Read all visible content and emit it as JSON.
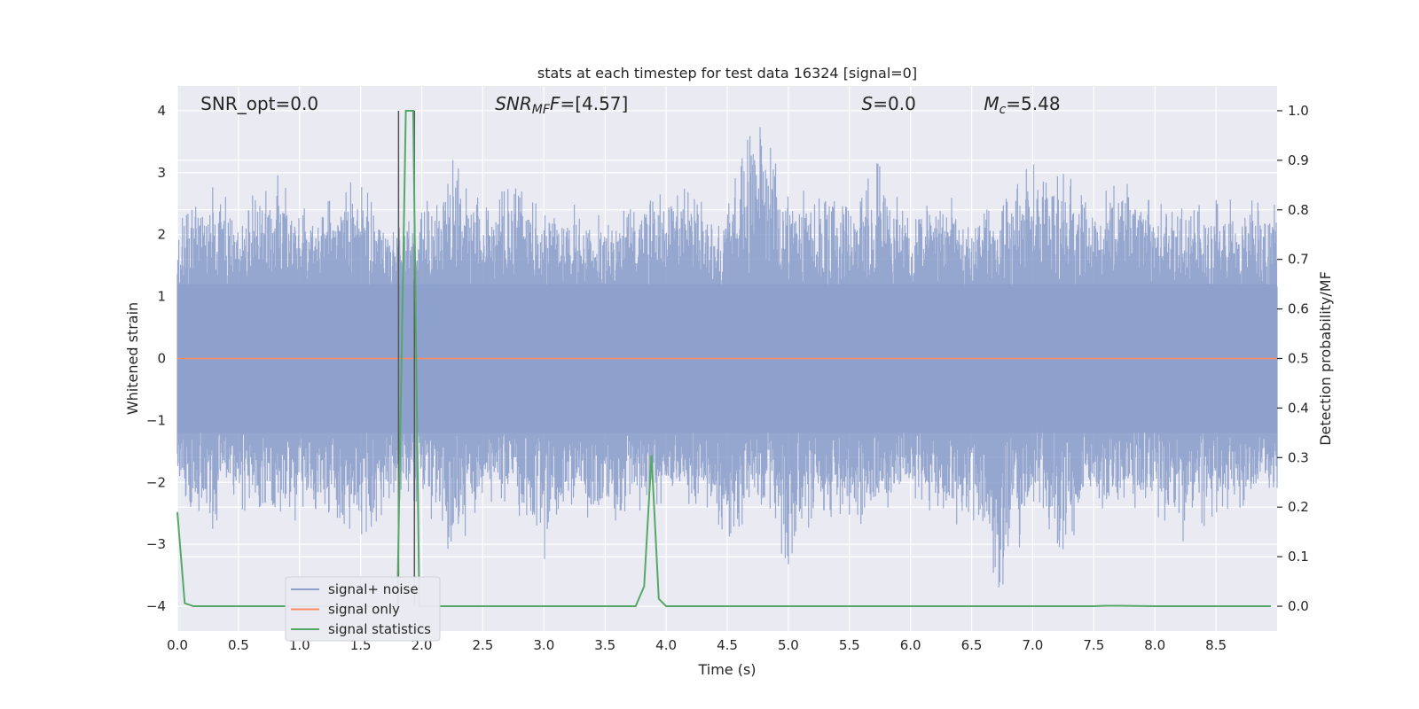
{
  "chart_data": {
    "type": "line",
    "title": "stats at each timestep for test data 16324 [signal=0]",
    "xlabel": "Time (s)",
    "ylabel_left": "Whitened strain",
    "ylabel_right": "Detection probability/MF",
    "xlim": [
      0,
      9
    ],
    "ylim_left": [
      -4.4,
      4.4
    ],
    "ylim_right": [
      -0.05,
      1.05
    ],
    "x_ticks": [
      "0.0",
      "0.5",
      "1.0",
      "1.5",
      "2.0",
      "2.5",
      "3.0",
      "3.5",
      "4.0",
      "4.5",
      "5.0",
      "5.5",
      "6.0",
      "6.5",
      "7.0",
      "7.5",
      "8.0",
      "8.5"
    ],
    "y_left_ticks": [
      "4",
      "3",
      "2",
      "1",
      "0",
      "−1",
      "−2",
      "−3",
      "−4"
    ],
    "y_right_ticks": [
      "1.0",
      "0.9",
      "0.8",
      "0.7",
      "0.6",
      "0.5",
      "0.4",
      "0.3",
      "0.2",
      "0.1",
      "0.0"
    ],
    "grid": true,
    "legend_position": "lower-left",
    "annotations": {
      "snr_opt": "SNR_opt=0.0",
      "snr_mf_main": "SNR",
      "snr_mf_sub": "MF",
      "snr_mf_value": "=[4.57]",
      "s_label": "S",
      "s_value": "=0.0",
      "mc_main": "M",
      "mc_sub": "c",
      "mc_value": "=5.48"
    },
    "series": [
      {
        "name": "signal+ noise",
        "color": "#8da0cb",
        "axis": "left",
        "description_values": "whitened noise, amplitude approx ±2 with peaks to ±4",
        "envelope": {
          "x": [
            0.0,
            0.25,
            0.5,
            0.75,
            1.0,
            1.25,
            1.5,
            1.75,
            2.0,
            2.25,
            2.5,
            2.75,
            3.0,
            3.25,
            3.5,
            3.75,
            4.0,
            4.25,
            4.5,
            4.75,
            5.0,
            5.25,
            5.5,
            5.75,
            6.0,
            6.25,
            6.5,
            6.75,
            7.0,
            7.25,
            7.5,
            7.75,
            8.0,
            8.25,
            8.5,
            8.75,
            9.0
          ],
          "upper": [
            2.2,
            2.9,
            2.4,
            3.2,
            2.4,
            2.6,
            3.0,
            2.2,
            2.4,
            3.3,
            2.6,
            2.9,
            2.4,
            2.5,
            2.3,
            2.9,
            3.0,
            2.6,
            2.6,
            4.0,
            2.8,
            2.7,
            2.5,
            3.3,
            2.3,
            2.8,
            2.5,
            2.5,
            3.3,
            3.1,
            2.5,
            3.2,
            2.6,
            2.4,
            2.6,
            2.6,
            2.7
          ],
          "lower": [
            -2.1,
            -2.8,
            -2.5,
            -2.4,
            -2.7,
            -2.5,
            -2.9,
            -2.6,
            -2.3,
            -3.3,
            -2.3,
            -2.4,
            -3.4,
            -2.4,
            -3.1,
            -2.5,
            -2.4,
            -2.4,
            -2.9,
            -2.5,
            -3.5,
            -2.4,
            -2.8,
            -2.6,
            -2.4,
            -2.6,
            -2.8,
            -4.0,
            -2.4,
            -3.2,
            -2.5,
            -2.4,
            -2.6,
            -3.1,
            -2.5,
            -2.4,
            -2.2
          ]
        }
      },
      {
        "name": "signal only",
        "color": "#fc8d62",
        "axis": "left",
        "x": [
          0,
          9
        ],
        "y": [
          0,
          0
        ]
      },
      {
        "name": "signal statistics",
        "color": "#55a868",
        "axis": "right",
        "x": [
          0.0,
          0.06,
          0.13,
          0.5,
          1.0,
          1.5,
          1.8,
          1.87,
          1.93,
          1.98,
          2.05,
          2.5,
          3.0,
          3.5,
          3.75,
          3.82,
          3.88,
          3.94,
          4.0,
          4.5,
          5.0,
          6.0,
          7.0,
          7.5,
          7.6,
          7.7,
          8.0,
          8.5,
          8.95
        ],
        "y": [
          0.19,
          0.006,
          0.0,
          0.0,
          0.0,
          0.0,
          0.0,
          1.0,
          1.0,
          0.0,
          0.0,
          0.0,
          0.0,
          0.0,
          0.0,
          0.04,
          0.305,
          0.015,
          0.0,
          0.0,
          0.0,
          0.0,
          0.0,
          0.0,
          0.001,
          0.001,
          0.0,
          0.0,
          0.0
        ]
      }
    ],
    "vertical_lines": [
      {
        "x": 1.81,
        "ymin": -4.0,
        "ymax": 4.0,
        "color": "#555555"
      },
      {
        "x": 1.94,
        "ymin": -4.0,
        "ymax": 4.0,
        "color": "#555555"
      }
    ]
  }
}
